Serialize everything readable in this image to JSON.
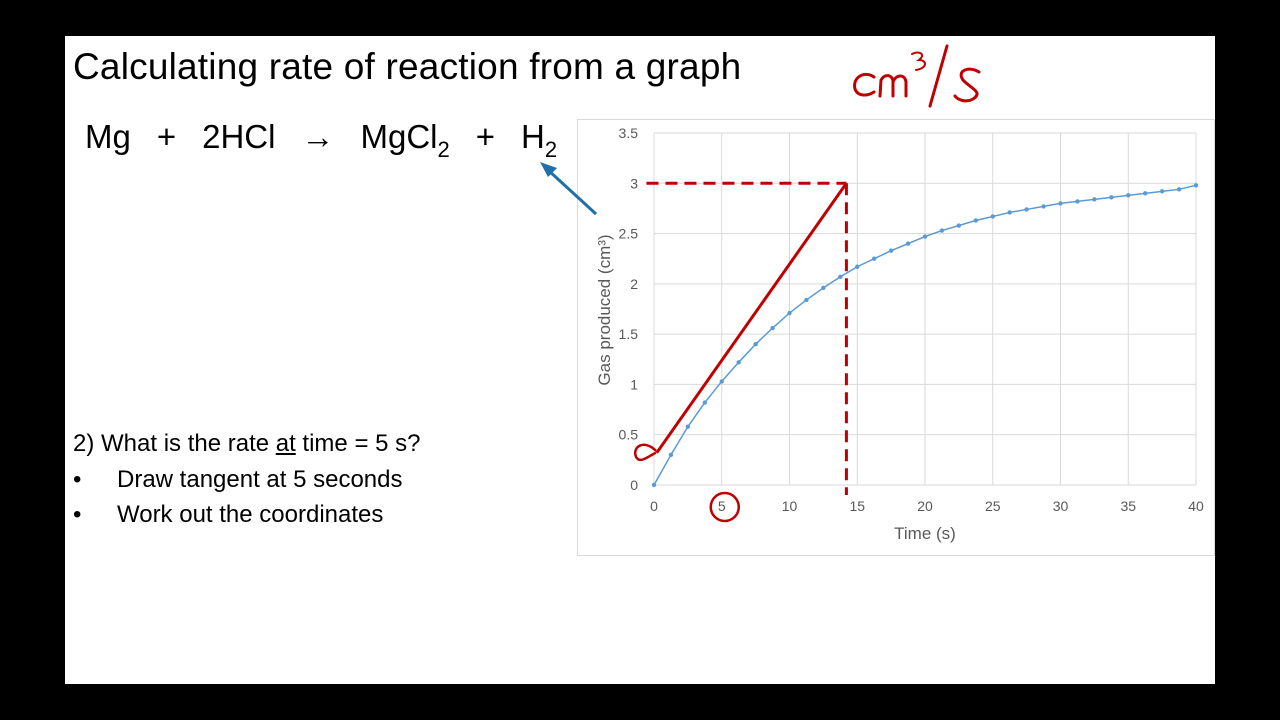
{
  "slide": {
    "title": "Calculating rate of reaction from a graph",
    "equation": {
      "reactant1": "Mg",
      "plus1": "+",
      "reactant2": "2HCl",
      "arrow": "→",
      "product1_main": "MgCl",
      "product1_sub": "2",
      "plus2": "+",
      "product2_main": "H",
      "product2_sub": "2"
    },
    "question": {
      "prefix": "2) What is the rate ",
      "underlined": "at",
      "suffix": " time = 5 s?"
    },
    "bullets": [
      "Draw tangent at 5 seconds",
      "Work out the coordinates"
    ],
    "handwritten_units": "cm³/s"
  },
  "colors": {
    "background": "#000000",
    "slide": "#ffffff",
    "series": "#5b9bd5",
    "annotation_red": "#c00000",
    "arrow_blue": "#1f6fa8",
    "grid": "#d9d9d9",
    "axis_text": "#595959"
  },
  "chart_data": {
    "type": "line",
    "xlabel": "Time (s)",
    "ylabel": "Gas produced (cm³)",
    "xlim": [
      0,
      40
    ],
    "ylim": [
      0,
      3.5
    ],
    "x_ticks": [
      "0",
      "5",
      "10",
      "15",
      "20",
      "25",
      "30",
      "35",
      "40"
    ],
    "y_ticks": [
      "0",
      "0.5",
      "1",
      "1.5",
      "2",
      "2.5",
      "3",
      "3.5"
    ],
    "grid": true,
    "markers": true,
    "series": [
      {
        "x": [
          0,
          1.25,
          2.5,
          3.75,
          5,
          6.25,
          7.5,
          8.75,
          10,
          11.25,
          12.5,
          13.75,
          15,
          16.25,
          17.5,
          18.75,
          20,
          21.25,
          22.5,
          23.75,
          25,
          26.25,
          27.5,
          28.75,
          30,
          31.25,
          32.5,
          33.75,
          35,
          36.25,
          37.5,
          38.75,
          40
        ],
        "y": [
          0,
          0.3,
          0.58,
          0.82,
          1.03,
          1.22,
          1.4,
          1.56,
          1.71,
          1.84,
          1.96,
          2.07,
          2.17,
          2.25,
          2.33,
          2.4,
          2.47,
          2.53,
          2.58,
          2.63,
          2.67,
          2.71,
          2.74,
          2.77,
          2.8,
          2.82,
          2.84,
          2.86,
          2.88,
          2.9,
          2.92,
          2.94,
          2.98
        ]
      }
    ],
    "annotations": {
      "tangent": {
        "x1": 0.2,
        "y1": 0.32,
        "x2": 14.2,
        "y2": 3.0
      },
      "horizontal_dashed": {
        "x_from": -1,
        "x_to": 14.2,
        "y": 3.0
      },
      "vertical_dashed": {
        "x": 14.2,
        "y_from": 3.0,
        "y_to": -0.1
      },
      "circled_x_tick": "5",
      "circled_y_point": 0.32
    }
  }
}
